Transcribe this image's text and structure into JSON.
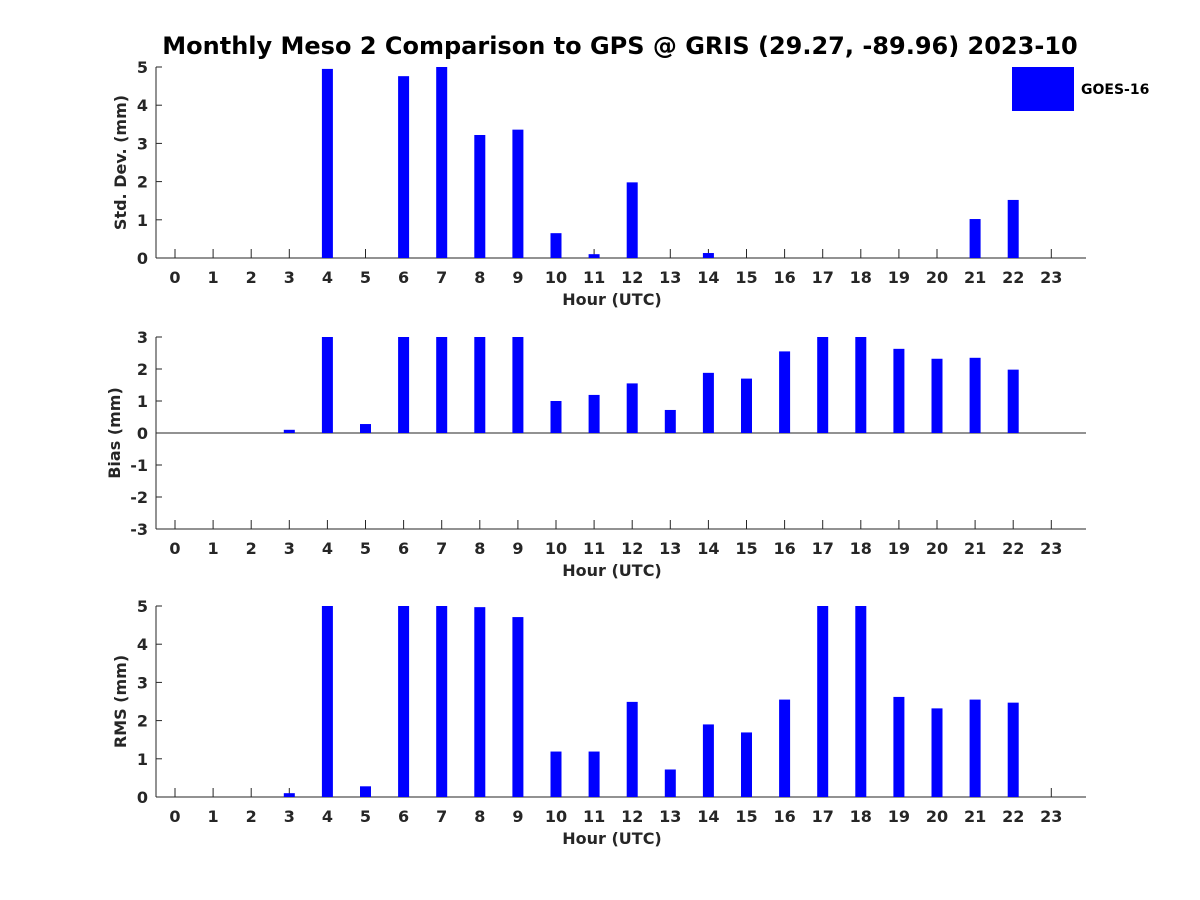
{
  "figure": {
    "title": "Monthly Meso 2 Comparison to GPS @ GRIS (29.27, -89.96) 2023-10"
  },
  "legend": {
    "label": "GOES-16",
    "color": "#0000ff",
    "placement": "top-right"
  },
  "chart_data": [
    {
      "type": "bar",
      "xlabel": "Hour (UTC)",
      "ylabel": "Std. Dev. (mm)",
      "ylim": [
        0,
        5
      ],
      "yticks": [
        0,
        1,
        2,
        3,
        4,
        5
      ],
      "categories": [
        "0",
        "1",
        "2",
        "3",
        "4",
        "5",
        "6",
        "7",
        "8",
        "9",
        "10",
        "11",
        "12",
        "13",
        "14",
        "15",
        "16",
        "17",
        "18",
        "19",
        "20",
        "21",
        "22",
        "23"
      ],
      "series": [
        {
          "name": "GOES-16",
          "color": "#0000ff",
          "values": [
            null,
            null,
            null,
            null,
            4.95,
            null,
            4.76,
            5.0,
            3.22,
            3.36,
            0.65,
            0.1,
            1.98,
            null,
            0.13,
            null,
            null,
            null,
            null,
            null,
            null,
            1.02,
            1.52,
            null
          ]
        }
      ]
    },
    {
      "type": "bar",
      "xlabel": "Hour (UTC)",
      "ylabel": "Bias (mm)",
      "ylim": [
        -3,
        3
      ],
      "yticks": [
        -3,
        -2,
        -1,
        0,
        1,
        2,
        3
      ],
      "zero_line": true,
      "categories": [
        "0",
        "1",
        "2",
        "3",
        "4",
        "5",
        "6",
        "7",
        "8",
        "9",
        "10",
        "11",
        "12",
        "13",
        "14",
        "15",
        "16",
        "17",
        "18",
        "19",
        "20",
        "21",
        "22",
        "23"
      ],
      "series": [
        {
          "name": "GOES-16",
          "color": "#0000ff",
          "values": [
            null,
            null,
            null,
            0.1,
            3.0,
            0.28,
            3.0,
            3.0,
            3.0,
            3.0,
            1.0,
            1.19,
            1.55,
            0.72,
            1.88,
            1.7,
            2.55,
            3.0,
            3.0,
            2.63,
            2.32,
            2.35,
            1.98,
            null
          ]
        }
      ]
    },
    {
      "type": "bar",
      "xlabel": "Hour (UTC)",
      "ylabel": "RMS (mm)",
      "ylim": [
        0,
        5
      ],
      "yticks": [
        0,
        1,
        2,
        3,
        4,
        5
      ],
      "categories": [
        "0",
        "1",
        "2",
        "3",
        "4",
        "5",
        "6",
        "7",
        "8",
        "9",
        "10",
        "11",
        "12",
        "13",
        "14",
        "15",
        "16",
        "17",
        "18",
        "19",
        "20",
        "21",
        "22",
        "23"
      ],
      "series": [
        {
          "name": "GOES-16",
          "color": "#0000ff",
          "values": [
            null,
            null,
            null,
            0.1,
            5.0,
            0.28,
            5.0,
            5.0,
            4.97,
            4.71,
            1.19,
            1.19,
            2.49,
            0.72,
            1.9,
            1.69,
            2.55,
            5.0,
            5.0,
            2.62,
            2.32,
            2.55,
            2.47,
            null
          ]
        }
      ]
    }
  ]
}
